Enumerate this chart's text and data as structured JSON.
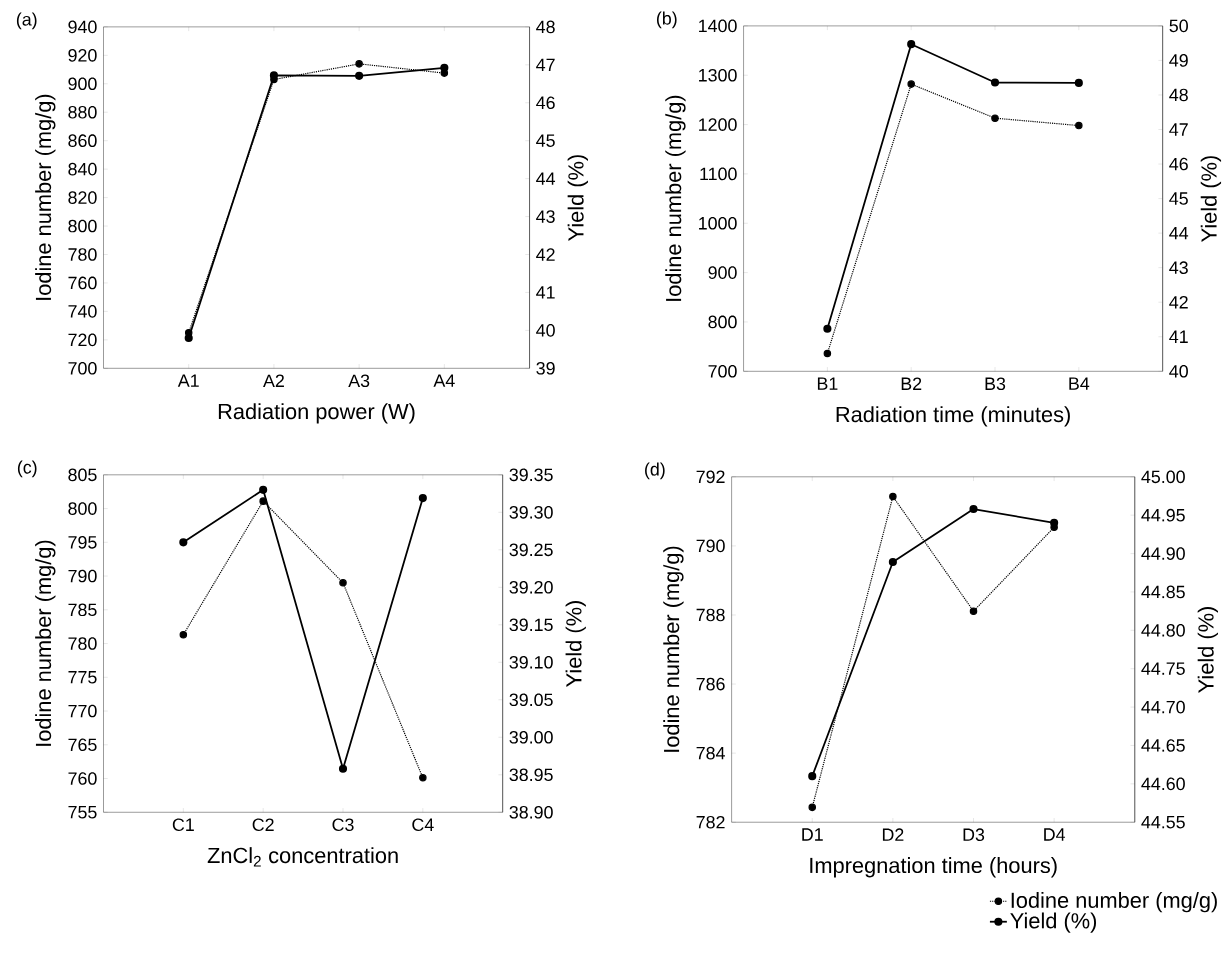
{
  "chart_data": [
    {
      "type": "line",
      "categories": [
        "A1",
        "A2",
        "A3",
        "A4"
      ],
      "xlabel": "Radiation power (W)",
      "ylabel": "Iodine number (mg/g)",
      "y2label": "Yield (%)",
      "annotations": [
        "(a)"
      ],
      "ylim": [
        700,
        940
      ],
      "yticks": [
        700,
        720,
        740,
        760,
        780,
        800,
        820,
        840,
        860,
        880,
        900,
        920,
        940
      ],
      "y2lim": [
        39,
        48
      ],
      "y2ticks": [
        39,
        40,
        41,
        42,
        43,
        44,
        45,
        46,
        47,
        48
      ],
      "series": [
        {
          "color": "#000000",
          "line_style": "dotted",
          "marker": "circle",
          "values": [
            725,
            903,
            914,
            907.5
          ]
        },
        {
          "color": "#000000",
          "line_style": "solid",
          "marker": "circle",
          "axis": "y2",
          "values": [
            39.8,
            46.72,
            46.71,
            46.92
          ]
        }
      ]
    },
    {
      "type": "line",
      "categories": [
        "B1",
        "B2",
        "B3",
        "B4"
      ],
      "xlabel": "Radiation time (minutes)",
      "ylabel": "Iodine number (mg/g)",
      "y2label": "Yield (%)",
      "annotations": [
        "(b)"
      ],
      "ylim": [
        700,
        1400
      ],
      "yticks": [
        700,
        800,
        900,
        1000,
        1100,
        1200,
        1300,
        1400
      ],
      "y2lim": [
        40,
        50
      ],
      "y2ticks": [
        40,
        41,
        42,
        43,
        44,
        45,
        46,
        47,
        48,
        49,
        50
      ],
      "series": [
        {
          "color": "#000000",
          "line_style": "dotted",
          "marker": "circle",
          "values": [
            736,
            1282,
            1213,
            1198
          ]
        },
        {
          "color": "#000000",
          "line_style": "solid",
          "marker": "circle",
          "axis": "y2",
          "values": [
            41.23,
            49.47,
            48.36,
            48.35
          ]
        }
      ]
    },
    {
      "type": "line",
      "categories": [
        "C1",
        "C2",
        "C3",
        "C4"
      ],
      "xlabel": "ZnCl$_{2}$ concentration",
      "ylabel": "Iodine number (mg/g)",
      "y2label": "Yield (%)",
      "annotations": [
        "(c)"
      ],
      "ylim": [
        755,
        805
      ],
      "yticks": [
        755,
        760,
        765,
        770,
        775,
        780,
        785,
        790,
        795,
        800,
        805
      ],
      "y2lim": [
        38.9,
        39.35
      ],
      "y2ticks": [
        {
          "value": 38.9,
          "label": "38.90"
        },
        {
          "value": 38.95,
          "label": "38.95"
        },
        {
          "value": 39.0,
          "label": "39.00"
        },
        {
          "value": 39.05,
          "label": "39.05"
        },
        {
          "value": 39.1,
          "label": "39.10"
        },
        {
          "value": 39.15,
          "label": "39.15"
        },
        {
          "value": 39.2,
          "label": "39.20"
        },
        {
          "value": 39.25,
          "label": "39.25"
        },
        {
          "value": 39.3,
          "label": "39.30"
        },
        {
          "value": 39.35,
          "label": "39.35"
        }
      ],
      "series": [
        {
          "color": "#000000",
          "line_style": "dotted",
          "marker": "circle",
          "values": [
            781.3,
            801.1,
            789.0,
            760.1
          ]
        },
        {
          "color": "#000000",
          "line_style": "solid",
          "marker": "circle",
          "axis": "y2",
          "values": [
            39.26,
            39.33,
            38.958,
            39.319
          ]
        }
      ]
    },
    {
      "type": "line",
      "categories": [
        "D1",
        "D2",
        "D3",
        "D4"
      ],
      "xlabel": "Impregnation time (hours)",
      "ylabel": "Iodine number (mg/g)",
      "y2label": "Yield (%)",
      "annotations": [
        "(d)"
      ],
      "legend": "bottom right",
      "ylim": [
        782,
        792
      ],
      "yticks": [
        782,
        784,
        786,
        788,
        790,
        792
      ],
      "y2lim": [
        44.55,
        45.0
      ],
      "y2ticks": [
        {
          "value": 44.55,
          "label": "44.55"
        },
        {
          "value": 44.6,
          "label": "44.60"
        },
        {
          "value": 44.65,
          "label": "44.65"
        },
        {
          "value": 44.7,
          "label": "44.70"
        },
        {
          "value": 44.75,
          "label": "44.75"
        },
        {
          "value": 44.8,
          "label": "44.80"
        },
        {
          "value": 44.85,
          "label": "44.85"
        },
        {
          "value": 44.9,
          "label": "44.90"
        },
        {
          "value": 44.95,
          "label": "44.95"
        },
        {
          "value": 45.0,
          "label": "45.00"
        }
      ],
      "series": [
        {
          "name": "Iodine number (mg/g)",
          "color": "#000000",
          "line_style": "dotted",
          "marker": "circle",
          "values": [
            782.43,
            791.43,
            788.11,
            790.54
          ]
        },
        {
          "name": "Yield (%)",
          "color": "#000000",
          "line_style": "solid",
          "marker": "circle",
          "axis": "y2",
          "values": [
            44.61,
            44.889,
            44.958,
            44.94
          ]
        }
      ]
    }
  ]
}
